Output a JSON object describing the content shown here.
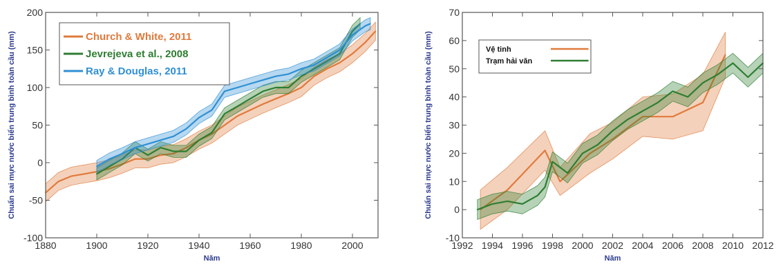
{
  "chart_data": [
    {
      "type": "line",
      "title": "",
      "xlabel": "Năm",
      "ylabel": "Chuẩn sai mực nước biển trung bình toàn cầu (mm)",
      "xlim": [
        1880,
        2010
      ],
      "ylim": [
        -100,
        200
      ],
      "xticks": [
        "1880",
        "1900",
        "1920",
        "1940",
        "1960",
        "1980",
        "2000"
      ],
      "yticks": [
        "-100",
        "-50",
        "0",
        "50",
        "100",
        "150",
        "200"
      ],
      "legend_position": "top-left",
      "grid": false,
      "series": [
        {
          "name": "Church & White, 2011",
          "color": "#e07a3c",
          "x": [
            1880,
            1885,
            1890,
            1895,
            1900,
            1905,
            1910,
            1915,
            1920,
            1925,
            1930,
            1935,
            1940,
            1945,
            1950,
            1955,
            1960,
            1965,
            1970,
            1975,
            1980,
            1985,
            1990,
            1995,
            2000,
            2005,
            2009
          ],
          "y": [
            -40,
            -25,
            -18,
            -15,
            -12,
            -8,
            -2,
            5,
            5,
            10,
            12,
            20,
            30,
            38,
            50,
            62,
            70,
            78,
            85,
            92,
            100,
            115,
            125,
            133,
            145,
            160,
            175
          ],
          "uncertainty": 12
        },
        {
          "name": "Jevrejeva et al., 2008",
          "color": "#2e7d32",
          "x": [
            1900,
            1905,
            1910,
            1915,
            1920,
            1925,
            1930,
            1935,
            1940,
            1945,
            1950,
            1955,
            1960,
            1965,
            1970,
            1975,
            1980,
            1985,
            1990,
            1995,
            2000,
            2003
          ],
          "y": [
            -15,
            -5,
            5,
            20,
            10,
            20,
            15,
            15,
            30,
            40,
            65,
            75,
            85,
            95,
            100,
            100,
            115,
            125,
            135,
            145,
            175,
            185
          ],
          "uncertainty": 8
        },
        {
          "name": "Ray & Douglas, 2011",
          "color": "#2f8fd4",
          "x": [
            1900,
            1905,
            1910,
            1915,
            1920,
            1925,
            1930,
            1935,
            1940,
            1945,
            1950,
            1955,
            1960,
            1965,
            1970,
            1975,
            1980,
            1985,
            1990,
            1995,
            2000,
            2005,
            2007
          ],
          "y": [
            -5,
            5,
            12,
            20,
            25,
            30,
            35,
            45,
            60,
            70,
            95,
            100,
            105,
            110,
            115,
            118,
            125,
            130,
            140,
            150,
            170,
            182,
            185
          ],
          "uncertainty": 8
        }
      ]
    },
    {
      "type": "line",
      "title": "",
      "xlabel": "Năm",
      "ylabel": "Chuẩn sai mực nước biển trung bình toàn cầu (mm)",
      "xlim": [
        1992,
        2012
      ],
      "ylim": [
        -10,
        70
      ],
      "xticks": [
        "1992",
        "1994",
        "1996",
        "1998",
        "2000",
        "2002",
        "2004",
        "2006",
        "2008",
        "2010",
        "2012"
      ],
      "yticks": [
        "-10",
        "0",
        "10",
        "20",
        "30",
        "40",
        "50",
        "60",
        "70"
      ],
      "legend_position": "top-left",
      "grid": false,
      "series": [
        {
          "name": "Vệ tinh",
          "color": "#e07a3c",
          "x": [
            1993.2,
            1995,
            1997.5,
            1998.5,
            2000.5,
            2002,
            2004,
            2006,
            2008,
            2009.5
          ],
          "y": [
            0,
            7,
            21,
            10,
            20,
            25,
            33,
            33,
            38,
            55
          ],
          "upper": [
            7,
            15,
            28,
            15,
            27,
            31,
            40,
            41,
            48,
            63
          ],
          "lower": [
            -7,
            0,
            14,
            5,
            13,
            18,
            26,
            25,
            28,
            47
          ]
        },
        {
          "name": "Trạm hải văn",
          "color": "#2e7d32",
          "x": [
            1993,
            1994,
            1995,
            1996,
            1997,
            1997.5,
            1998,
            1999,
            2000,
            2001,
            2002,
            2003,
            2004,
            2005,
            2006,
            2007,
            2008,
            2009,
            2010,
            2011,
            2012
          ],
          "y": [
            0,
            2,
            3,
            2,
            5,
            8,
            17,
            13,
            20,
            23,
            28,
            32,
            35,
            38,
            42,
            40,
            45,
            48,
            52,
            47,
            52
          ],
          "uncertainty": 3.5
        }
      ]
    }
  ]
}
